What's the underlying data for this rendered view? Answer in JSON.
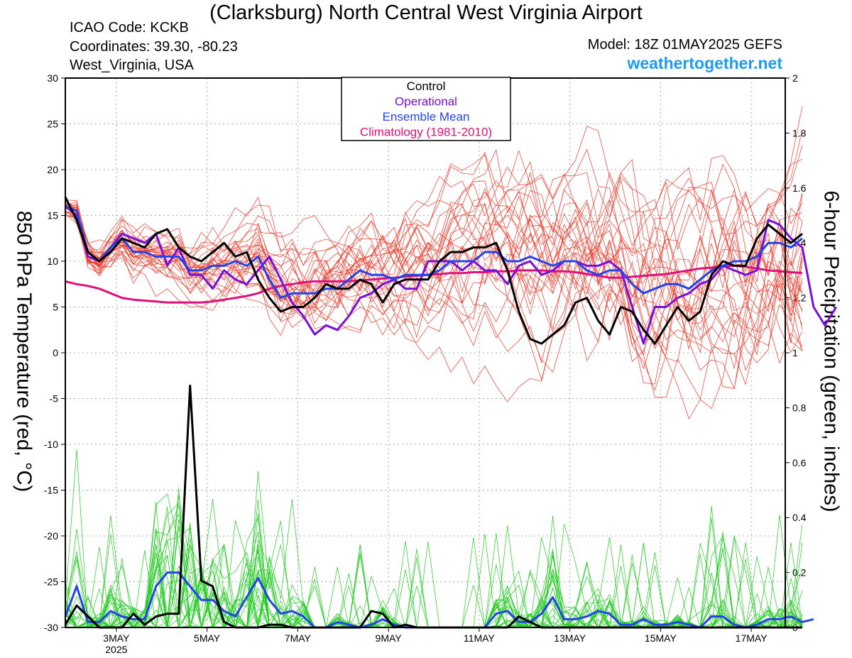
{
  "header": {
    "title": "(Clarksburg) North Central West Virginia Airport",
    "icao": "ICAO Code: KCKB",
    "coords": "Coordinates: 39.30, -80.23",
    "region": "West_Virginia, USA",
    "model": "Model: 18Z 01MAY2025 GEFS",
    "site": "weathertogether.net"
  },
  "legend": {
    "control": "Control",
    "operational": "Operational",
    "mean": "Ensemble Mean",
    "climo": "Climatology (1981-2010)"
  },
  "colors": {
    "control": "#000000",
    "operational": "#7a10d8",
    "mean": "#2244e8",
    "climo": "#e0107a",
    "members_temp": "#f03a2a",
    "members_precip": "#22cc22"
  },
  "chart_data": {
    "type": "line",
    "xlabel": "",
    "ylabel": "850 hPa Temperature (red, °C)",
    "y2label": "6-hour Precipitation (green, inches)",
    "xlim": [
      1.875,
      17.75
    ],
    "ylim": [
      -30,
      30
    ],
    "y2lim": [
      0,
      2
    ],
    "grid": true,
    "legend_position": "top-center",
    "x_ticks": [
      {
        "x": 3,
        "label": "3MAY",
        "sub": "2025"
      },
      {
        "x": 5,
        "label": "5MAY",
        "sub": ""
      },
      {
        "x": 7,
        "label": "7MAY",
        "sub": ""
      },
      {
        "x": 9,
        "label": "9MAY",
        "sub": ""
      },
      {
        "x": 11,
        "label": "11MAY",
        "sub": ""
      },
      {
        "x": 13,
        "label": "13MAY",
        "sub": ""
      },
      {
        "x": 15,
        "label": "15MAY",
        "sub": ""
      },
      {
        "x": 17,
        "label": "17MAY",
        "sub": ""
      }
    ],
    "y_ticks": [
      30,
      25,
      20,
      15,
      10,
      5,
      0,
      -5,
      -10,
      -15,
      -20,
      -25,
      -30
    ],
    "y2_ticks": [
      "2",
      "1.8",
      "1.6",
      "1.4",
      "1.2",
      "1",
      "0.8",
      "0.6",
      "0.4",
      "0.2",
      "0"
    ],
    "x_step_days": 0.25,
    "series_temp": [
      {
        "name": "Control",
        "values": [
          17,
          14.5,
          11,
          10,
          11,
          12.5,
          12,
          11.5,
          13,
          13.5,
          11.5,
          10.5,
          10,
          11,
          12,
          10.5,
          11,
          8,
          6,
          4.5,
          5,
          5,
          6,
          7.5,
          7,
          7,
          8,
          7.5,
          5.5,
          7.5,
          8,
          8,
          8,
          10,
          11,
          11,
          11.5,
          11.5,
          12,
          9,
          4.5,
          1.5,
          1,
          2,
          3,
          5.5,
          6,
          3.5,
          2,
          5,
          4.5,
          2.5,
          1,
          3,
          5,
          3.5,
          4.5,
          8.5,
          10,
          9.5,
          9.5,
          12.5,
          14,
          13,
          12,
          13
        ]
      },
      {
        "name": "Operational",
        "values": [
          16,
          15,
          10.5,
          10,
          11.5,
          13,
          12.5,
          12,
          13,
          9.5,
          11.5,
          8.5,
          8.5,
          7,
          9,
          8,
          7.5,
          9,
          10.5,
          8,
          5.5,
          4,
          2,
          3,
          2.5,
          4,
          6,
          6.5,
          7.5,
          8,
          7,
          7,
          10,
          10,
          10,
          9,
          10,
          9,
          9,
          7.5,
          9.5,
          10,
          8.5,
          9,
          10,
          10,
          9.5,
          9.5,
          10,
          9,
          5,
          1,
          5,
          5,
          6,
          6.5,
          7.5,
          8,
          9.5,
          9,
          8.5,
          9,
          14.5,
          14,
          12.5,
          11.5,
          5,
          3,
          5
        ]
      },
      {
        "name": "Ensemble Mean",
        "values": [
          16,
          15.5,
          11,
          10,
          11.5,
          12.5,
          11,
          11,
          10.5,
          10.5,
          10.5,
          9,
          9,
          9.5,
          9.5,
          10,
          9.5,
          10.5,
          8,
          6,
          6.5,
          6.5,
          6.5,
          7,
          7,
          8,
          9,
          8.5,
          8.5,
          8,
          8.5,
          8.5,
          8.5,
          9,
          10,
          10,
          10,
          11,
          11,
          10,
          10,
          10.5,
          10,
          9.5,
          10,
          10,
          9,
          8.5,
          9,
          9,
          7.5,
          6.5,
          7,
          7.5,
          7.5,
          7,
          8,
          9,
          9.5,
          10,
          10,
          10.5,
          12,
          12,
          11.5,
          12.5
        ]
      },
      {
        "name": "Climatology (1981-2010)",
        "values": [
          7.8,
          7.5,
          7.3,
          7.0,
          6.5,
          6.0,
          5.8,
          5.7,
          5.6,
          5.5,
          5.5,
          5.5,
          5.5,
          5.6,
          5.8,
          6.0,
          6.2,
          6.5,
          7.0,
          7.3,
          7.5,
          7.7,
          7.8,
          7.8,
          7.8,
          7.8,
          7.9,
          8.0,
          8.1,
          8.2,
          8.3,
          8.4,
          8.5,
          8.6,
          8.7,
          8.7,
          8.8,
          8.8,
          8.9,
          8.9,
          9.0,
          9.0,
          9.0,
          8.9,
          8.9,
          8.8,
          8.6,
          8.4,
          8.2,
          8.2,
          8.3,
          8.4,
          8.5,
          8.6,
          8.8,
          9.0,
          9.2,
          9.3,
          9.5,
          9.5,
          9.4,
          9.2,
          9.0,
          8.9,
          8.8,
          8.7
        ]
      }
    ],
    "series_precip": [
      {
        "name": "Control",
        "values": [
          0.01,
          0.08,
          0.04,
          0,
          0,
          0,
          0.05,
          0.01,
          0.04,
          0.05,
          0.05,
          0.88,
          0.17,
          0.15,
          0.02,
          0,
          0,
          0,
          0.01,
          0.01,
          0,
          0,
          0,
          0,
          0,
          0,
          0,
          0.06,
          0.05,
          0,
          0.01,
          0,
          0,
          0,
          0,
          0,
          0,
          0,
          0,
          0,
          0.04,
          0.02,
          0,
          0,
          0,
          0,
          0,
          0,
          0,
          0,
          0,
          0,
          0,
          0,
          0,
          0,
          0,
          0,
          0,
          0,
          0,
          0,
          0,
          0,
          0,
          0
        ]
      },
      {
        "name": "Ensemble Mean",
        "values": [
          0.04,
          0.15,
          0.02,
          0.02,
          0.06,
          0.04,
          0.03,
          0.03,
          0.15,
          0.2,
          0.2,
          0.15,
          0.1,
          0.1,
          0.06,
          0.04,
          0.11,
          0.18,
          0.1,
          0.05,
          0.06,
          0.04,
          0,
          0,
          0.02,
          0.01,
          0,
          0.01,
          0.03,
          0.01,
          0,
          0,
          0,
          0,
          0,
          0,
          0,
          0,
          0.05,
          0.06,
          0.02,
          0.02,
          0.05,
          0.11,
          0.03,
          0.03,
          0.04,
          0.06,
          0.05,
          0.01,
          0.01,
          0.03,
          0.01,
          0.01,
          0.02,
          0.01,
          0,
          0.04,
          0.04,
          0.01,
          0,
          0.01,
          0.03,
          0.03,
          0.04,
          0.02,
          0.03
        ]
      }
    ],
    "member_count": 30
  }
}
